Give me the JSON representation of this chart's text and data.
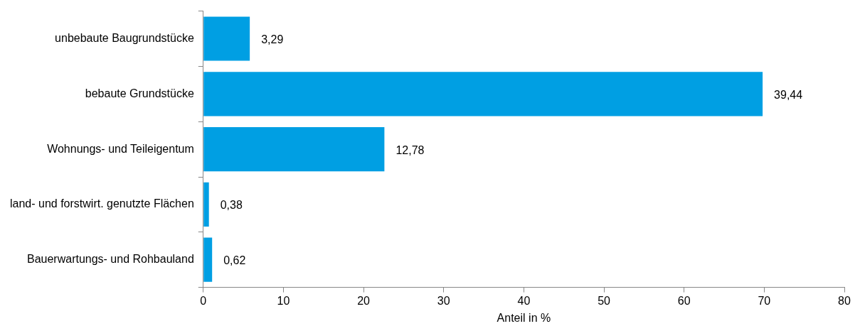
{
  "chart_data": {
    "type": "bar",
    "orientation": "horizontal",
    "xlabel": "Anteil in %",
    "categories": [
      "unbebaute Baugrundstücke",
      "bebaute Grundstücke",
      "Wohnungs- und Teileigentum",
      "land- und forstwirt. genutzte Flächen",
      "Bauerwartungs- und Rohbauland"
    ],
    "values": [
      5.8,
      69.8,
      22.6,
      0.7,
      1.1
    ],
    "annotations": [
      {
        "text": "3,29",
        "x": 5.8,
        "y": "unbebaute Baugrundstücke"
      },
      {
        "text": "39,44",
        "x": 69.8,
        "y": "bebaute Grundstücke"
      },
      {
        "text": "12,78",
        "x": 22.6,
        "y": "Wohnungs- und Teileigentum"
      },
      {
        "text": "0,38",
        "x": 0.7,
        "y": "land- und forstwirt. genutzte Flächen"
      },
      {
        "text": "0,62",
        "x": 1.1,
        "y": "Bauerwartungs- und Rohbauland"
      }
    ],
    "color": "#009fe3",
    "xlim": [
      0,
      80
    ],
    "xticks": [
      0,
      10,
      20,
      30,
      40,
      50,
      60,
      70,
      80
    ],
    "grid": false,
    "legend": false
  }
}
